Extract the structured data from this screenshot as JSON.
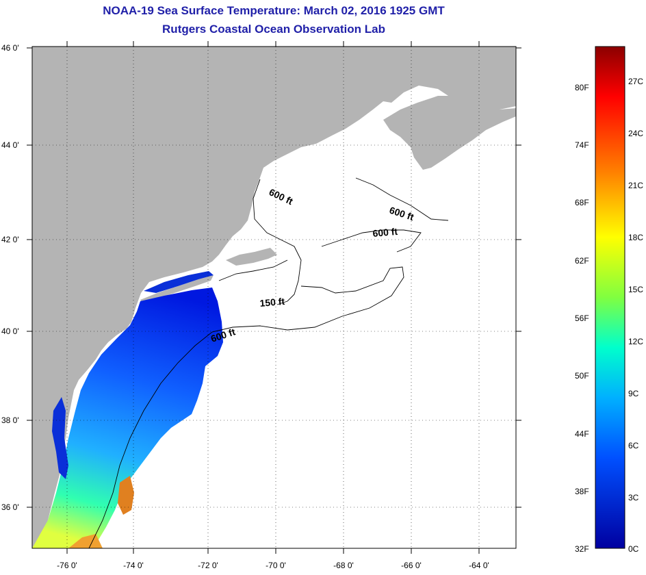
{
  "header": {
    "title": "NOAA-19 Sea Surface Temperature:  March 02, 2016 1925 GMT",
    "subtitle": "Rutgers Coastal Ocean Observation Lab"
  },
  "map": {
    "lat_labels": [
      "46 0'",
      "44 0'",
      "42 0'",
      "40 0'",
      "38 0'",
      "36 0'"
    ],
    "lon_labels": [
      "-76 0'",
      "-74 0'",
      "-72 0'",
      "-70 0'",
      "-68 0'",
      "-66 0'",
      "-64 0'"
    ],
    "depth_labels": [
      "600 ft",
      "600 ft",
      "600 ft",
      "150 ft",
      "600 ft"
    ],
    "colors": {
      "land": "#b4b4b4",
      "ocean_no_data": "#ffffff",
      "coastline": "#000000",
      "grid": "#000000"
    }
  },
  "colorbar": {
    "fahrenheit_labels": [
      "80F",
      "74F",
      "68F",
      "62F",
      "56F",
      "50F",
      "44F",
      "38F",
      "32F"
    ],
    "celsius_labels": [
      "27C",
      "24C",
      "21C",
      "18C",
      "15C",
      "12C",
      "9C",
      "6C",
      "3C",
      "0C"
    ],
    "gradient": [
      "#8b0000",
      "#ff0000",
      "#ff8000",
      "#ffff00",
      "#00ffcc",
      "#00b0ff",
      "#0050ff",
      "#0000a0"
    ]
  }
}
